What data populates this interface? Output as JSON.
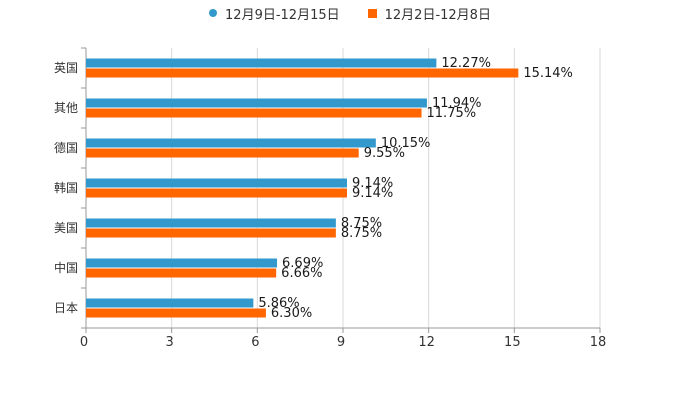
{
  "chart_data": {
    "type": "bar",
    "orientation": "horizontal",
    "title": "",
    "xlabel": "",
    "ylabel": "",
    "categories": [
      "英国",
      "其他",
      "德国",
      "韩国",
      "美国",
      "中国",
      "日本"
    ],
    "series": [
      {
        "name": "12月9日-12月15日",
        "color": "#3399cc",
        "marker": "circle",
        "values": [
          12.27,
          11.94,
          10.15,
          9.14,
          8.75,
          6.69,
          5.86
        ],
        "labels": [
          "12.27%",
          "11.94%",
          "10.15%",
          "9.14%",
          "8.75%",
          "6.69%",
          "5.86%"
        ]
      },
      {
        "name": "12月2日-12月8日",
        "color": "#ff6600",
        "marker": "square",
        "values": [
          15.14,
          11.75,
          9.55,
          9.14,
          8.75,
          6.66,
          6.3
        ],
        "labels": [
          "15.14%",
          "11.75%",
          "9.55%",
          "9.14%",
          "8.75%",
          "6.66%",
          "6.30%"
        ]
      }
    ],
    "xlim": [
      0,
      18
    ],
    "xticks": [
      0,
      3,
      6,
      9,
      12,
      15,
      18
    ],
    "xtick_labels": [
      "0",
      "3",
      "6",
      "9",
      "12",
      "15",
      "18"
    ],
    "grid": true,
    "legend_position": "top-center"
  }
}
